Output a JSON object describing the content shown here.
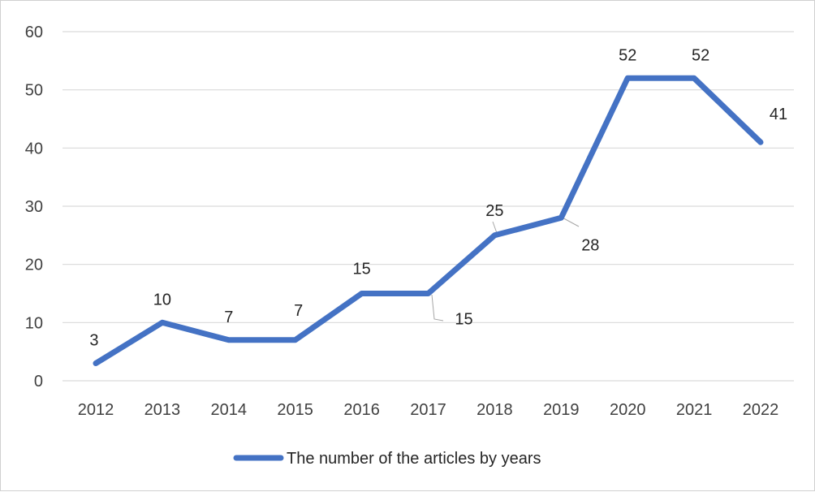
{
  "chart_data": {
    "type": "line",
    "categories": [
      "2012",
      "2013",
      "2014",
      "2015",
      "2016",
      "2017",
      "2018",
      "2019",
      "2020",
      "2021",
      "2022"
    ],
    "series": [
      {
        "name": "The number of the articles by years",
        "values": [
          3,
          10,
          7,
          7,
          15,
          15,
          25,
          28,
          52,
          52,
          41
        ]
      }
    ],
    "data_labels": [
      "3",
      "10",
      "7",
      "7",
      "15",
      "15",
      "25",
      "28",
      "52",
      "52",
      "41"
    ],
    "ylim": [
      0,
      60
    ],
    "yticks": [
      "0",
      "10",
      "20",
      "30",
      "40",
      "50",
      "60"
    ],
    "grid": true,
    "legend": "bottom",
    "line_color": "#4472C4",
    "grid_color": "#d9d9d9"
  }
}
